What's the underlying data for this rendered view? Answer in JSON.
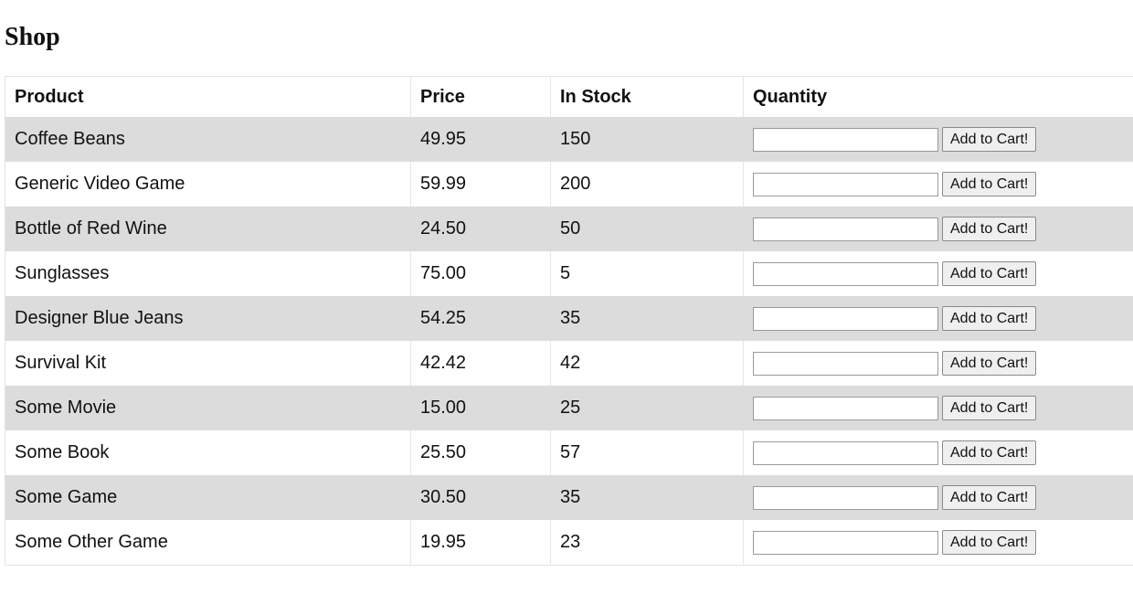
{
  "page": {
    "title": "Shop"
  },
  "table": {
    "headers": {
      "product": "Product",
      "price": "Price",
      "stock": "In Stock",
      "quantity": "Quantity"
    },
    "add_button_label": "Add to Cart!",
    "rows": [
      {
        "product": "Coffee Beans",
        "price": "49.95",
        "stock": "150",
        "quantity": ""
      },
      {
        "product": "Generic Video Game",
        "price": "59.99",
        "stock": "200",
        "quantity": ""
      },
      {
        "product": "Bottle of Red Wine",
        "price": "24.50",
        "stock": "50",
        "quantity": ""
      },
      {
        "product": "Sunglasses",
        "price": "75.00",
        "stock": "5",
        "quantity": ""
      },
      {
        "product": "Designer Blue Jeans",
        "price": "54.25",
        "stock": "35",
        "quantity": ""
      },
      {
        "product": "Survival Kit",
        "price": "42.42",
        "stock": "42",
        "quantity": ""
      },
      {
        "product": "Some Movie",
        "price": "15.00",
        "stock": "25",
        "quantity": ""
      },
      {
        "product": "Some Book",
        "price": "25.50",
        "stock": "57",
        "quantity": ""
      },
      {
        "product": "Some Game",
        "price": "30.50",
        "stock": "35",
        "quantity": ""
      },
      {
        "product": "Some Other Game",
        "price": "19.95",
        "stock": "23",
        "quantity": ""
      }
    ]
  },
  "colors": {
    "row_stripe": "#dcdcdc",
    "row_plain": "#ffffff",
    "border": "#e2e2e2",
    "button_bg": "#efefef"
  }
}
